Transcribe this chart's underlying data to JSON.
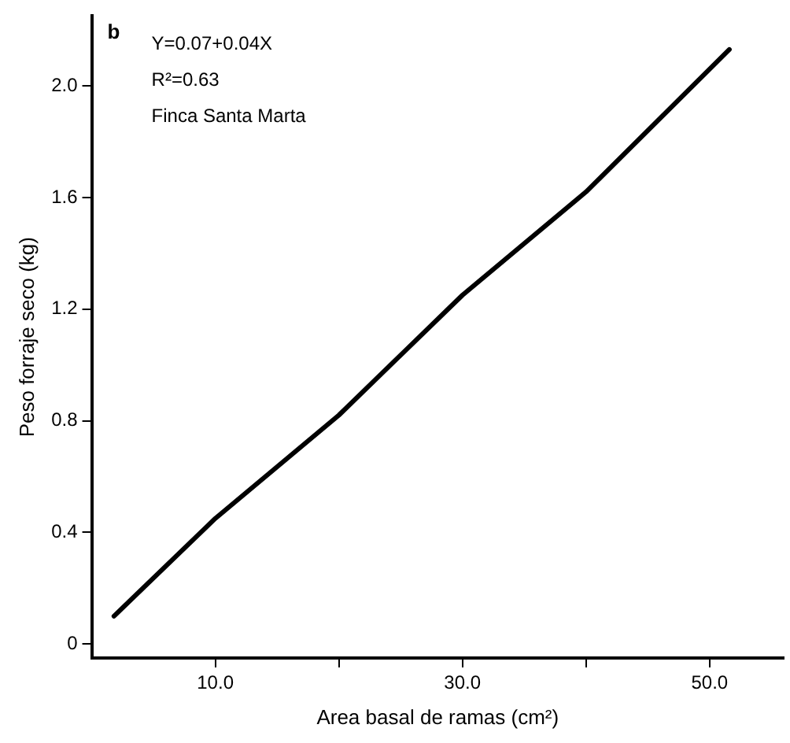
{
  "chart_data": {
    "type": "line",
    "xlabel": "Area basal de ramas (cm²)",
    "ylabel": "Peso forraje seco (kg)",
    "annotations": [
      "b",
      "Y=0.07+0.04X",
      "R²=0.63",
      "Finca Santa Marta"
    ],
    "x": [
      1.8,
      10,
      20,
      30,
      40,
      51.6
    ],
    "series": [
      {
        "color": "#000000",
        "values": [
          0.1,
          0.45,
          0.82,
          1.25,
          1.62,
          2.13
        ]
      }
    ],
    "xlim": [
      0,
      56
    ],
    "xticks": [
      {
        "value": 10,
        "label": "10.0"
      },
      {
        "value": 20,
        "label": null
      },
      {
        "value": 30,
        "label": "30.0"
      },
      {
        "value": 40,
        "label": null
      },
      {
        "value": 50,
        "label": "50.0"
      }
    ],
    "ylim": [
      -0.05,
      2.25
    ],
    "yticks": [
      0,
      0.4,
      0.8,
      1.2,
      1.6,
      {
        "value": 2,
        "label": "2.0"
      }
    ],
    "grid": false,
    "legend": false,
    "marker": "none",
    "line_style": "solid"
  }
}
